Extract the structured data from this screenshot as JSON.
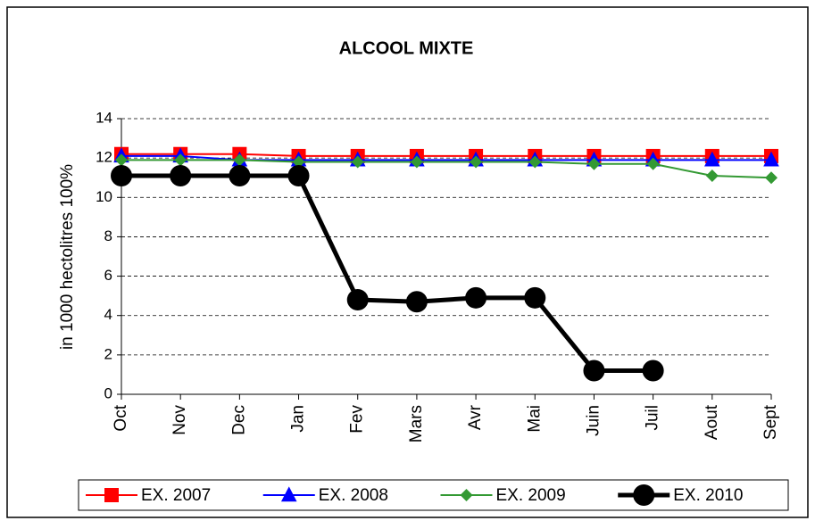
{
  "chart_data": {
    "type": "line",
    "title": "ALCOOL MIXTE",
    "y_label": "in 1000 hectolitres 100%",
    "categories": [
      "Oct",
      "Nov",
      "Dec",
      "Jan",
      "Fev",
      "Mars",
      "Avr",
      "Mai",
      "Juin",
      "Juil",
      "Aout",
      "Sept"
    ],
    "series": [
      {
        "name": "EX. 2007",
        "color": "#ff0000",
        "marker": "square",
        "values": [
          12.2,
          12.2,
          12.2,
          12.1,
          12.1,
          12.1,
          12.1,
          12.1,
          12.1,
          12.1,
          12.1,
          12.1
        ]
      },
      {
        "name": "EX. 2008",
        "color": "#0000ff",
        "marker": "triangle",
        "values": [
          12.1,
          12.1,
          11.9,
          11.9,
          11.9,
          11.9,
          11.9,
          11.9,
          11.9,
          11.9,
          11.9,
          11.9
        ]
      },
      {
        "name": "EX. 2009",
        "color": "#339933",
        "marker": "diamond",
        "values": [
          11.9,
          11.9,
          11.9,
          11.8,
          11.8,
          11.8,
          11.8,
          11.8,
          11.7,
          11.7,
          11.1,
          11.0
        ]
      },
      {
        "name": "EX. 2010",
        "color": "#000000",
        "marker": "circle",
        "values": [
          11.1,
          11.1,
          11.1,
          11.1,
          4.8,
          4.7,
          4.9,
          4.9,
          1.2,
          1.2,
          null,
          null
        ]
      }
    ],
    "ylim": [
      0,
      14
    ],
    "yticks": [
      0,
      2,
      4,
      6,
      8,
      10,
      12,
      14
    ],
    "grid": true,
    "legend": "bottom"
  }
}
